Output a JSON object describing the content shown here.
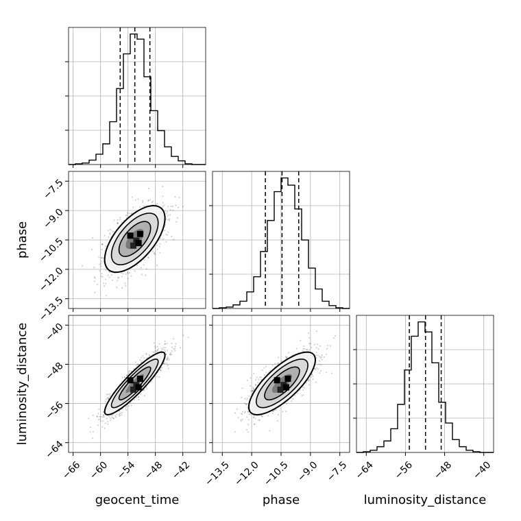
{
  "chart_data": {
    "type": "corner",
    "parameters": [
      {
        "key": "geocent_time",
        "label": "geocent_time",
        "range": [
          -67,
          -37
        ],
        "ticks": [
          -66,
          -60,
          -54,
          -48,
          -42
        ],
        "tick_labels": [
          "−66",
          "−60",
          "−54",
          "−48",
          "−42"
        ],
        "quantiles": [
          -55.7,
          -52.5,
          -49.2
        ]
      },
      {
        "key": "phase",
        "label": "phase",
        "range": [
          -14.0,
          -7.0
        ],
        "ticks": [
          -13.5,
          -12.0,
          -10.5,
          -9.0,
          -7.5
        ],
        "tick_labels": [
          "−13.5",
          "−12.0",
          "−10.5",
          "−9.0",
          "−7.5"
        ],
        "quantiles": [
          -11.3,
          -10.45,
          -9.6
        ]
      },
      {
        "key": "luminosity_distance",
        "label": "luminosity_distance",
        "range": [
          -66,
          -38
        ],
        "ticks": [
          -64,
          -56,
          -48,
          -40
        ],
        "tick_labels": [
          "−64",
          "−56",
          "−48",
          "−40"
        ],
        "quantiles": [
          -55.2,
          -51.9,
          -48.7
        ]
      }
    ],
    "histograms": [
      {
        "param": "geocent_time",
        "bins": [
          -67,
          -65.5,
          -64,
          -62.5,
          -61,
          -59.5,
          -58,
          -56.5,
          -55,
          -53.5,
          -52,
          -50.5,
          -49,
          -47.5,
          -46,
          -44.5,
          -43,
          -41.5,
          -40,
          -38.5,
          -37
        ],
        "counts": [
          0,
          1,
          2,
          6,
          14,
          28,
          58,
          103,
          150,
          177,
          170,
          119,
          73,
          46,
          24,
          11,
          5,
          1,
          0,
          0
        ]
      },
      {
        "param": "phase",
        "bins": [
          -14,
          -13.65,
          -13.3,
          -12.95,
          -12.6,
          -12.25,
          -11.9,
          -11.55,
          -11.2,
          -10.85,
          -10.5,
          -10.15,
          -9.8,
          -9.45,
          -9.1,
          -8.75,
          -8.4,
          -8.05,
          -7.7,
          -7.35,
          -7.0
        ],
        "counts": [
          0,
          1,
          2,
          5,
          10,
          23,
          44,
          79,
          122,
          162,
          181,
          171,
          138,
          95,
          56,
          27,
          10,
          4,
          1,
          0
        ]
      },
      {
        "param": "luminosity_distance",
        "bins": [
          -66,
          -64.6,
          -63.2,
          -61.8,
          -60.4,
          -59,
          -57.6,
          -56.2,
          -54.8,
          -53.4,
          -52,
          -50.6,
          -49.2,
          -47.8,
          -46.4,
          -45,
          -43.6,
          -42.2,
          -40.8,
          -39.4,
          -38
        ],
        "counts": [
          0,
          1,
          3,
          8,
          16,
          33,
          67,
          115,
          162,
          182,
          168,
          125,
          70,
          41,
          18,
          8,
          3,
          1,
          0,
          0
        ]
      }
    ],
    "pairs": [
      {
        "x": "geocent_time",
        "y": "phase",
        "center": [
          -52.5,
          -10.45
        ],
        "spread": [
          3.3,
          0.85
        ],
        "rho": 0.62
      },
      {
        "x": "geocent_time",
        "y": "luminosity_distance",
        "center": [
          -52.5,
          -51.9
        ],
        "spread": [
          3.3,
          3.2
        ],
        "rho": 0.9
      },
      {
        "x": "phase",
        "y": "luminosity_distance",
        "center": [
          -10.45,
          -51.9
        ],
        "spread": [
          0.85,
          3.2
        ],
        "rho": 0.75
      }
    ],
    "quantile_lines": "dashed",
    "grid": true
  }
}
